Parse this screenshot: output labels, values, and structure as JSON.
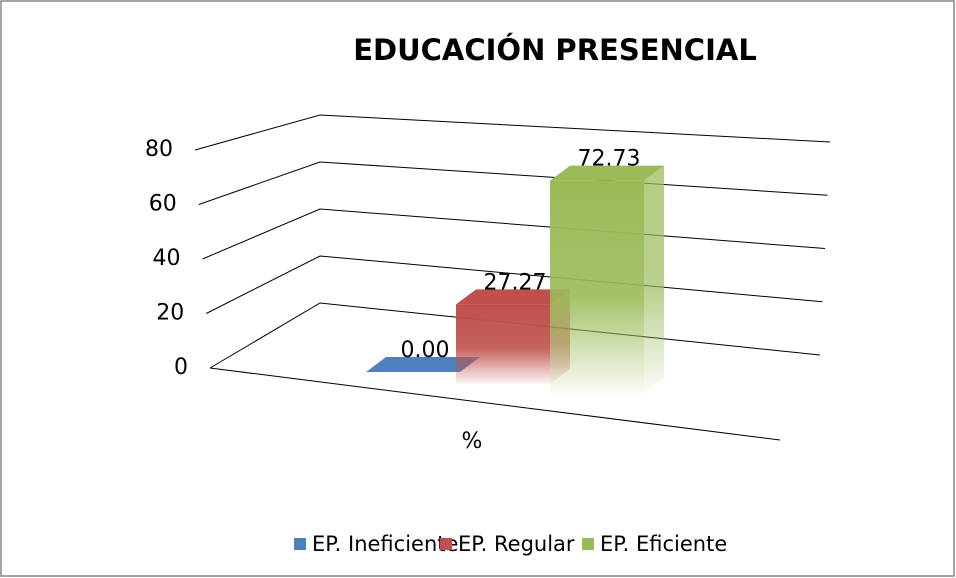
{
  "chart_data": {
    "type": "bar3d",
    "title": "EDUCACIÓN PRESENCIAL",
    "categories": [
      "%"
    ],
    "series": [
      {
        "name": "EP. Ineficiente",
        "color": "#4f81bd",
        "values": [
          0
        ],
        "value_labels": [
          "0.00"
        ]
      },
      {
        "name": "EP. Regular",
        "color": "#c0504d",
        "values": [
          27.27
        ]
      },
      {
        "name": "EP. Eficiente",
        "color": "#9bbb59",
        "values": [
          72.73
        ]
      }
    ],
    "ylim": [
      0,
      80
    ],
    "yticks": [
      0,
      20,
      40,
      60,
      80
    ],
    "grid": true,
    "legend": "bottom"
  }
}
